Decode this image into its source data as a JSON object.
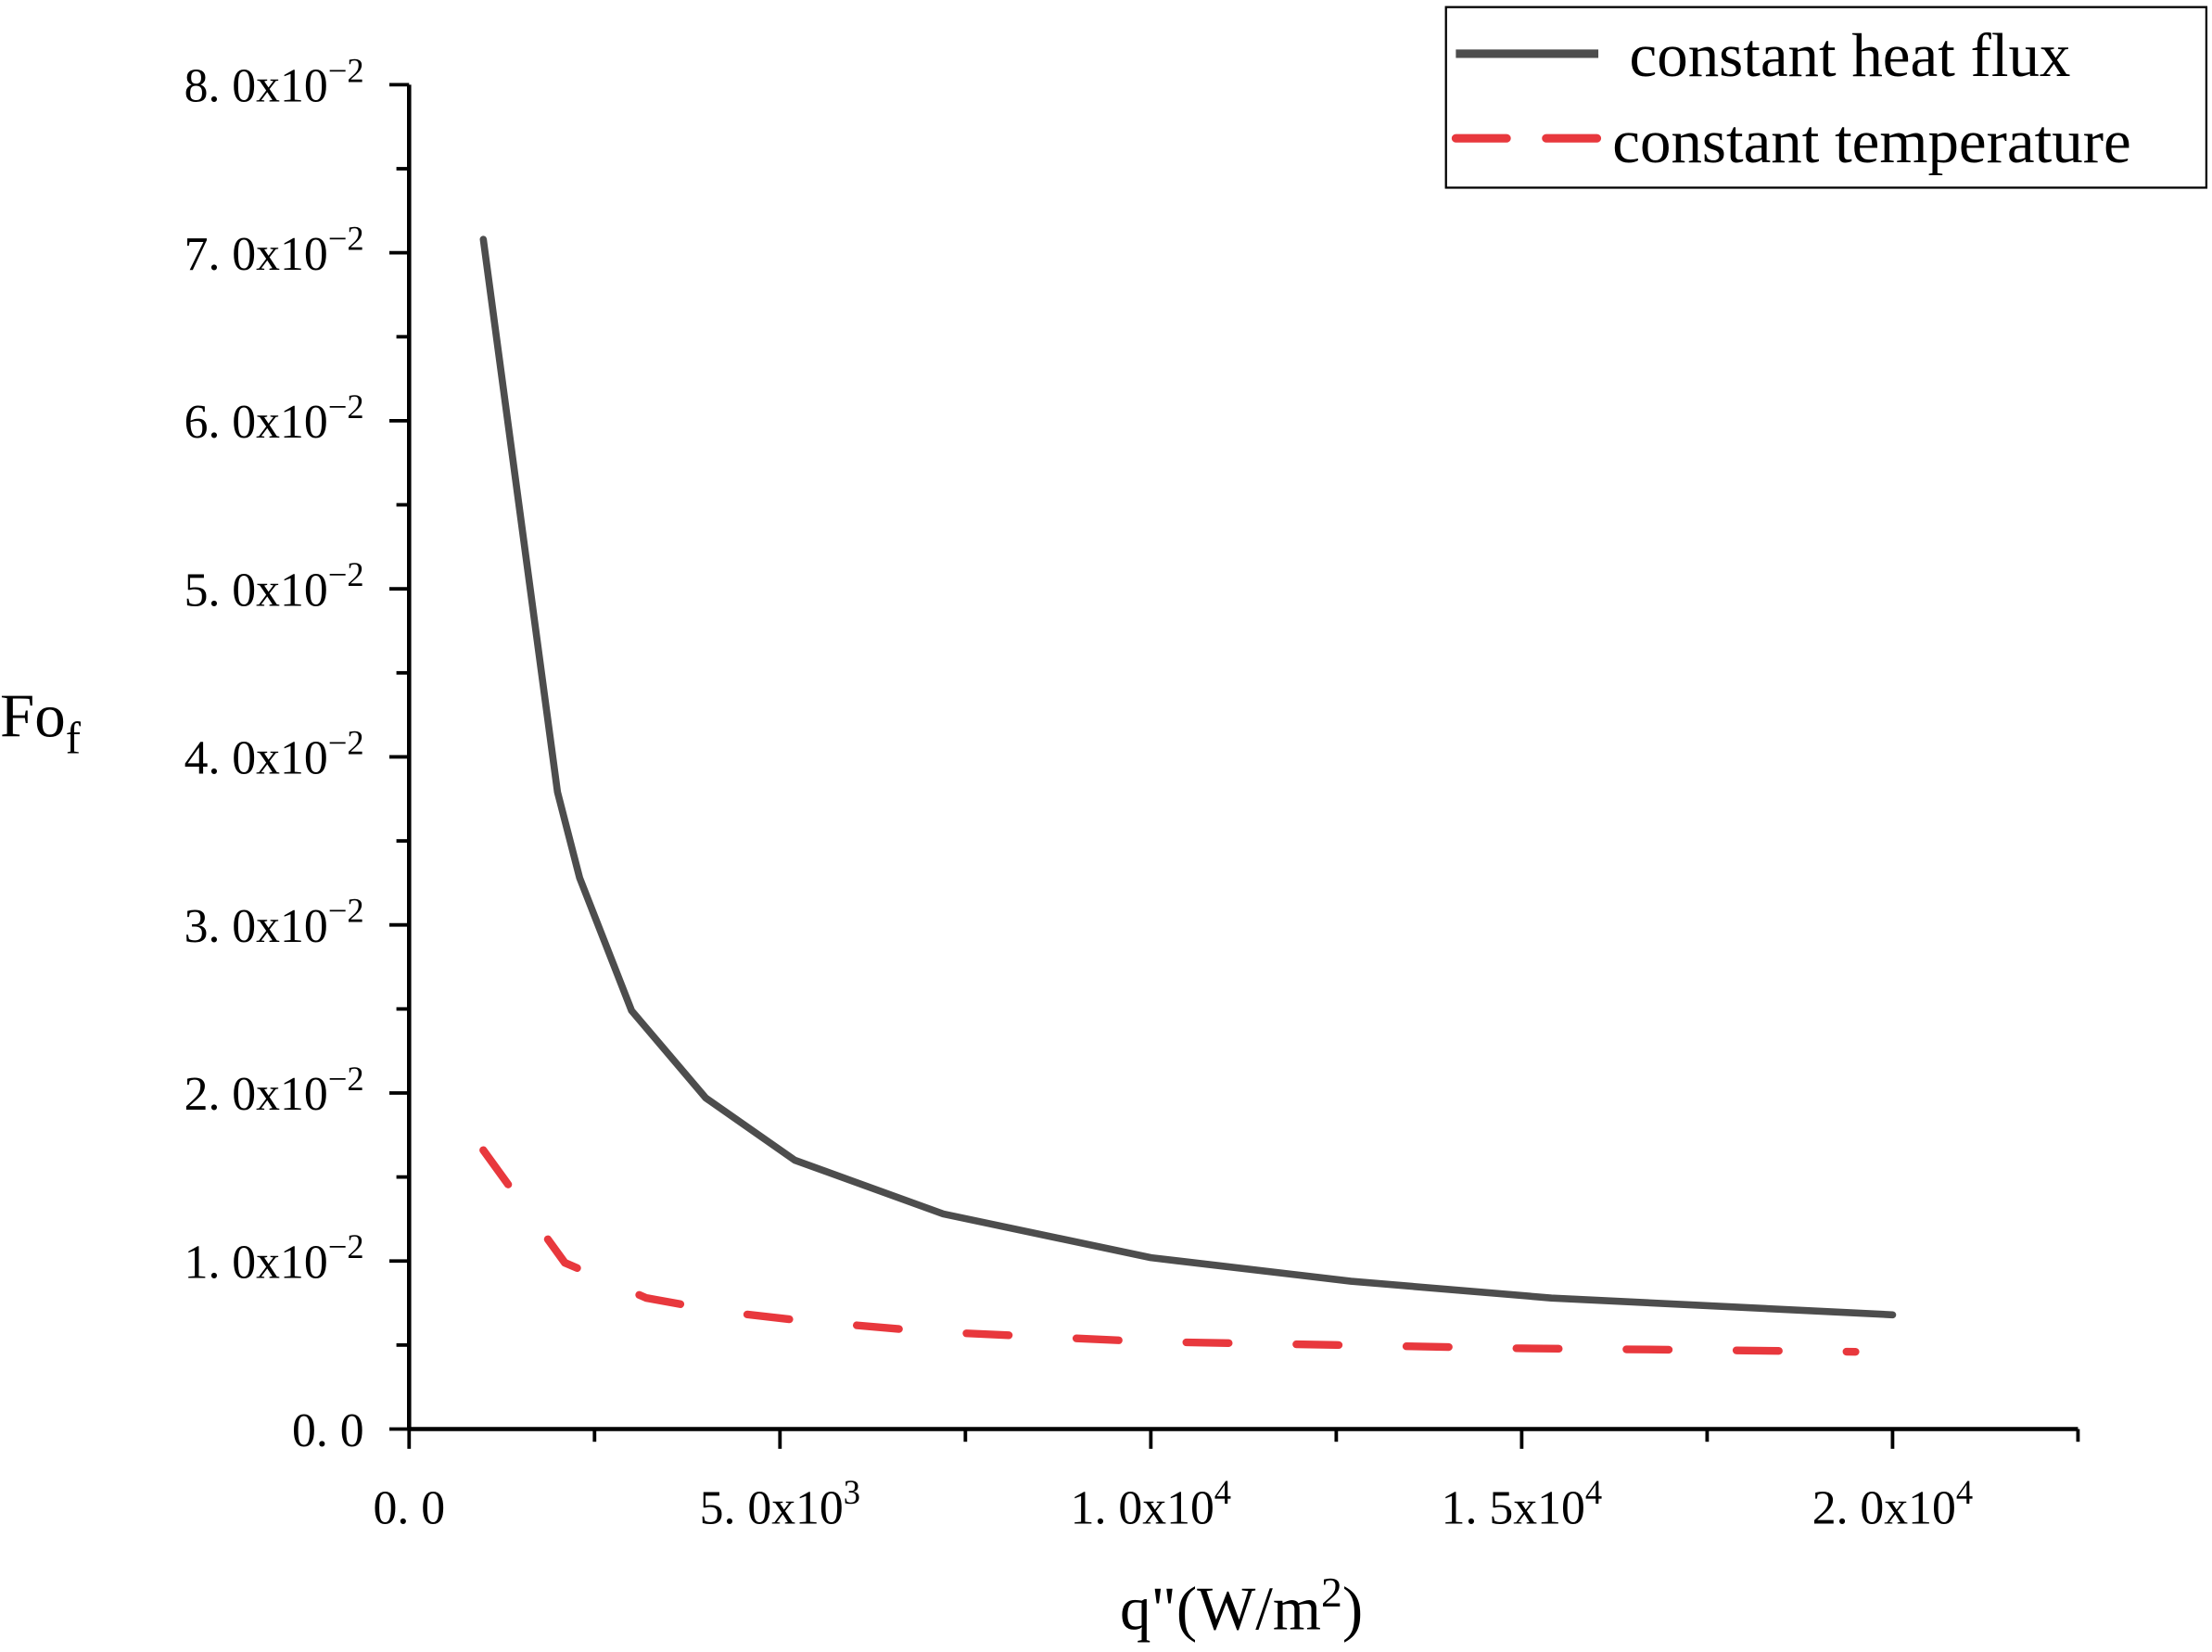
{
  "chart_data": {
    "type": "line",
    "title": "",
    "xlabel": "q\"(W/m",
    "xlabel_sup": "2",
    "xlabel_end": ")",
    "ylabel": "Fo",
    "ylabel_sub": "f",
    "xlim": [
      0,
      22500
    ],
    "ylim": [
      0,
      0.08
    ],
    "grid": false,
    "legend_position": "top-right",
    "x_ticks": [
      {
        "value": 0,
        "mant": "0. 0",
        "exp": ""
      },
      {
        "value": 5000,
        "mant": "5. 0x10",
        "exp": "3"
      },
      {
        "value": 10000,
        "mant": "1. 0x10",
        "exp": "4"
      },
      {
        "value": 15000,
        "mant": "1. 5x10",
        "exp": "4"
      },
      {
        "value": 20000,
        "mant": "2. 0x10",
        "exp": "4"
      }
    ],
    "y_ticks": [
      {
        "value": 0,
        "mant": "0. 0",
        "exp": ""
      },
      {
        "value": 0.01,
        "mant": "1. 0x10",
        "exp": "−2"
      },
      {
        "value": 0.02,
        "mant": "2. 0x10",
        "exp": "−2"
      },
      {
        "value": 0.03,
        "mant": "3. 0x10",
        "exp": "−2"
      },
      {
        "value": 0.04,
        "mant": "4. 0x10",
        "exp": "−2"
      },
      {
        "value": 0.05,
        "mant": "5. 0x10",
        "exp": "−2"
      },
      {
        "value": 0.06,
        "mant": "6. 0x10",
        "exp": "−2"
      },
      {
        "value": 0.07,
        "mant": "7. 0x10",
        "exp": "−2"
      },
      {
        "value": 0.08,
        "mant": "8. 0x10",
        "exp": "−2"
      }
    ],
    "series": [
      {
        "name": "constant heat flux",
        "color": "#4d4d4d",
        "dash": "solid",
        "x": [
          1000,
          2000,
          2300,
          3000,
          4000,
          5200,
          7200,
          10000,
          12700,
          15400,
          20000
        ],
        "y": [
          0.0708,
          0.0379,
          0.0328,
          0.0249,
          0.0197,
          0.016,
          0.0128,
          0.0102,
          0.0088,
          0.0078,
          0.0068
        ]
      },
      {
        "name": "constant temperature",
        "color": "#e8383d",
        "dash": "dashed",
        "x": [
          1000,
          2100,
          3200,
          4200,
          5200,
          7000,
          10000,
          12500,
          15000,
          17500,
          19500
        ],
        "y": [
          0.0166,
          0.0099,
          0.0078,
          0.007,
          0.0065,
          0.0058,
          0.0052,
          0.005,
          0.0048,
          0.0047,
          0.0046
        ]
      }
    ]
  }
}
